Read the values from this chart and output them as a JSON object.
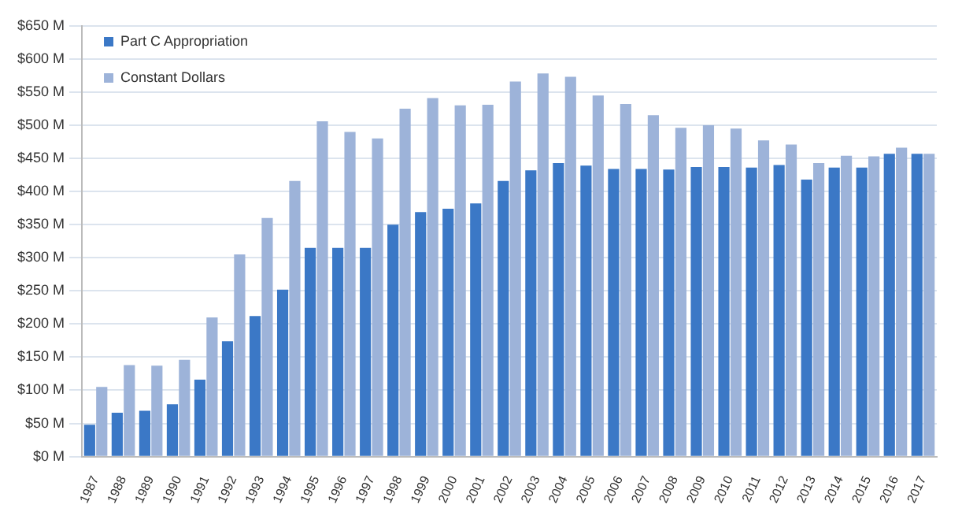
{
  "chart_data": {
    "type": "bar",
    "categories": [
      "1987",
      "1988",
      "1989",
      "1990",
      "1991",
      "1992",
      "1993",
      "1994",
      "1995",
      "1996",
      "1997",
      "1998",
      "1999",
      "2000",
      "2001",
      "2002",
      "2003",
      "2004",
      "2005",
      "2006",
      "2007",
      "2008",
      "2009",
      "2010",
      "2011",
      "2012",
      "2013",
      "2014",
      "2015",
      "2016",
      "2017"
    ],
    "series": [
      {
        "name": "Part C Appropriation",
        "color": "#3b78c6",
        "values": [
          48,
          66,
          69,
          79,
          116,
          174,
          212,
          252,
          315,
          315,
          315,
          350,
          369,
          374,
          382,
          416,
          432,
          443,
          439,
          434,
          434,
          433,
          437,
          437,
          436,
          440,
          418,
          436,
          436,
          457,
          457
        ]
      },
      {
        "name": "Constant Dollars",
        "color": "#9db3d9",
        "values": [
          105,
          138,
          137,
          146,
          210,
          305,
          360,
          416,
          506,
          490,
          480,
          525,
          541,
          530,
          531,
          566,
          578,
          573,
          545,
          532,
          515,
          496,
          500,
          495,
          477,
          471,
          443,
          454,
          453,
          466,
          457
        ]
      }
    ],
    "ylim": [
      0,
      650
    ],
    "yticks": [
      {
        "value": 0,
        "label": "$0 M"
      },
      {
        "value": 50,
        "label": "$50 M"
      },
      {
        "value": 100,
        "label": "$100 M"
      },
      {
        "value": 150,
        "label": "$150 M"
      },
      {
        "value": 200,
        "label": "$200 M"
      },
      {
        "value": 250,
        "label": "$250 M"
      },
      {
        "value": 300,
        "label": "$300 M"
      },
      {
        "value": 350,
        "label": "$350 M"
      },
      {
        "value": 400,
        "label": "$400 M"
      },
      {
        "value": 450,
        "label": "$450 M"
      },
      {
        "value": 500,
        "label": "$500 M"
      },
      {
        "value": 550,
        "label": "$550 M"
      },
      {
        "value": 600,
        "label": "$600 M"
      },
      {
        "value": 650,
        "label": "$650 M"
      }
    ],
    "grid": "y",
    "legend": "top left"
  }
}
